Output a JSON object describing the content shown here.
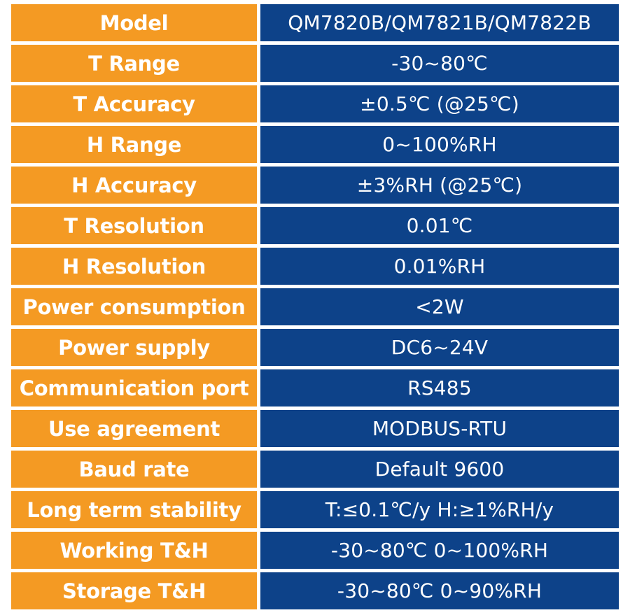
{
  "colors": {
    "label_background": "#f49a23",
    "value_background": "#0d4289",
    "text": "#ffffff"
  },
  "rows": [
    {
      "label": "Model",
      "value": "QM7820B/QM7821B/QM7822B"
    },
    {
      "label": "T Range",
      "value": "-30~80℃"
    },
    {
      "label": "T Accuracy",
      "value": "±0.5℃ (@25℃)"
    },
    {
      "label": "H Range",
      "value": "0~100%RH"
    },
    {
      "label": "H Accuracy",
      "value": "±3%RH (@25℃)"
    },
    {
      "label": "T Resolution",
      "value": "0.01℃"
    },
    {
      "label": "H Resolution",
      "value": "0.01%RH"
    },
    {
      "label": "Power consumption",
      "value": "<2W"
    },
    {
      "label": "Power supply",
      "value": "DC6~24V"
    },
    {
      "label": "Communication port",
      "value": "RS485"
    },
    {
      "label": "Use agreement",
      "value": "MODBUS-RTU"
    },
    {
      "label": "Baud rate",
      "value": "Default 9600"
    },
    {
      "label": "Long term stability",
      "value": "T:≤0.1℃/y  H:≥1%RH/y"
    },
    {
      "label": "Working T&H",
      "value": "-30~80℃  0~100%RH"
    },
    {
      "label": "Storage T&H",
      "value": "-30~80℃  0~90%RH"
    }
  ]
}
